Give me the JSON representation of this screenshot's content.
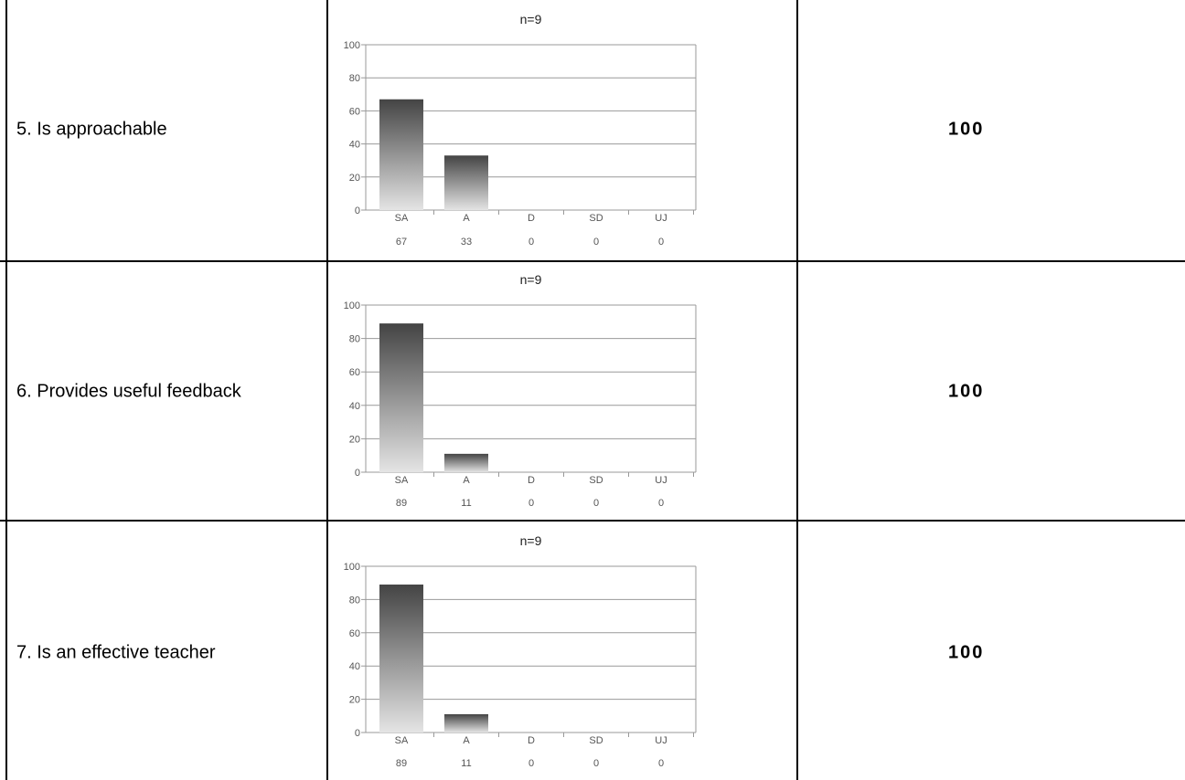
{
  "rows": [
    {
      "label": "5. Is approachable",
      "score": "100"
    },
    {
      "label": "6. Provides useful feedback",
      "score": "100"
    },
    {
      "label": "7. Is an effective teacher",
      "score": "100"
    }
  ],
  "colors": {
    "bar_top": "#444444",
    "bar_bottom": "#e4e4e4",
    "grid": "#999999",
    "axis_text": "#555555"
  },
  "chart_data": [
    {
      "type": "bar",
      "title": "n=9",
      "categories": [
        "SA",
        "A",
        "D",
        "SD",
        "UJ"
      ],
      "values": [
        67,
        33,
        0,
        0,
        0
      ],
      "value_labels": [
        "67",
        "33",
        "0",
        "0",
        "0"
      ],
      "ylim": [
        0,
        100
      ],
      "yticks": [
        0,
        20,
        40,
        60,
        80,
        100
      ],
      "grid": true
    },
    {
      "type": "bar",
      "title": "n=9",
      "categories": [
        "SA",
        "A",
        "D",
        "SD",
        "UJ"
      ],
      "values": [
        89,
        11,
        0,
        0,
        0
      ],
      "value_labels": [
        "89",
        "11",
        "0",
        "0",
        "0"
      ],
      "ylim": [
        0,
        100
      ],
      "yticks": [
        0,
        20,
        40,
        60,
        80,
        100
      ],
      "grid": true
    },
    {
      "type": "bar",
      "title": "n=9",
      "categories": [
        "SA",
        "A",
        "D",
        "SD",
        "UJ"
      ],
      "values": [
        89,
        11,
        0,
        0,
        0
      ],
      "value_labels": [
        "89",
        "11",
        "0",
        "0",
        "0"
      ],
      "ylim": [
        0,
        100
      ],
      "yticks": [
        0,
        20,
        40,
        60,
        80,
        100
      ],
      "grid": true
    }
  ]
}
